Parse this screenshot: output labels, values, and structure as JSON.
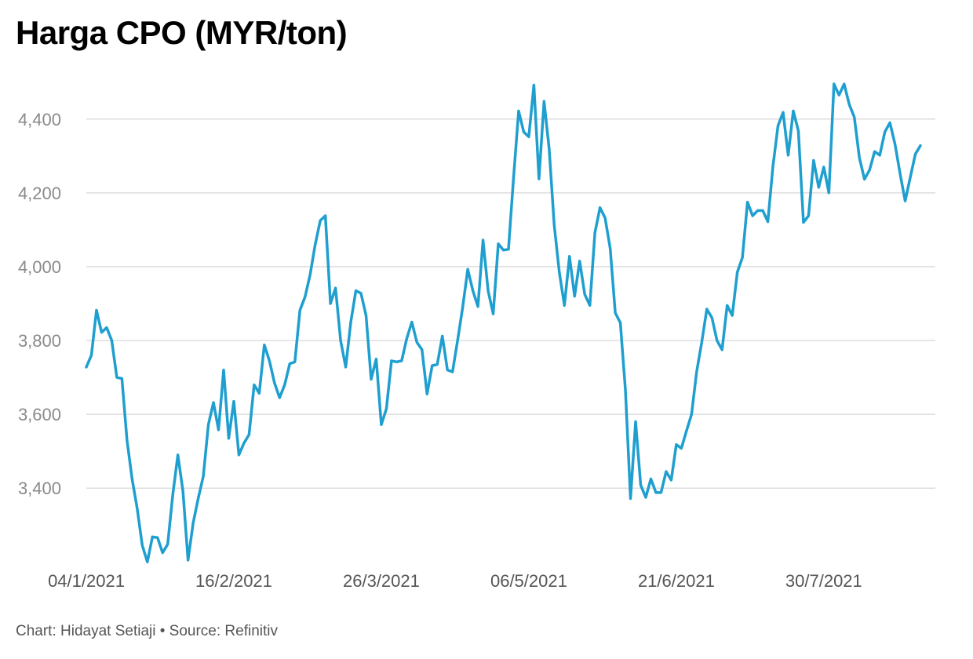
{
  "chart_data": {
    "type": "line",
    "title": "Harga CPO (MYR/ton)",
    "xlabel": "",
    "ylabel": "",
    "ylim": [
      3190,
      4510
    ],
    "yticks": [
      3400,
      3600,
      3800,
      4000,
      4200,
      4400
    ],
    "ytick_labels": [
      "3,400",
      "3,600",
      "3,800",
      "4,000",
      "4,200",
      "4,400"
    ],
    "xticks": [
      {
        "index": 0,
        "label": "04/1/2021"
      },
      {
        "index": 29,
        "label": "16/2/2021"
      },
      {
        "index": 58,
        "label": "26/3/2021"
      },
      {
        "index": 87,
        "label": "06/5/2021"
      },
      {
        "index": 116,
        "label": "21/6/2021"
      },
      {
        "index": 145,
        "label": "30/7/2021"
      }
    ],
    "grid": true,
    "color": "#1f9fcf",
    "series": [
      {
        "name": "CPO",
        "values": [
          3728,
          3760,
          3882,
          3822,
          3835,
          3800,
          3700,
          3697,
          3530,
          3425,
          3345,
          3245,
          3200,
          3268,
          3266,
          3225,
          3248,
          3382,
          3490,
          3392,
          3205,
          3305,
          3372,
          3432,
          3572,
          3632,
          3558,
          3720,
          3535,
          3635,
          3490,
          3522,
          3545,
          3680,
          3657,
          3788,
          3745,
          3685,
          3645,
          3680,
          3737,
          3742,
          3882,
          3918,
          3978,
          4060,
          4125,
          4138,
          3900,
          3942,
          3800,
          3728,
          3850,
          3935,
          3928,
          3868,
          3695,
          3750,
          3572,
          3615,
          3745,
          3742,
          3745,
          3805,
          3850,
          3795,
          3775,
          3655,
          3732,
          3735,
          3812,
          3720,
          3715,
          3800,
          3890,
          3993,
          3935,
          3892,
          4072,
          3935,
          3872,
          4062,
          4045,
          4047,
          4240,
          4422,
          4365,
          4352,
          4492,
          4238,
          4448,
          4320,
          4112,
          3985,
          3895,
          4028,
          3920,
          4015,
          3925,
          3895,
          4092,
          4160,
          4132,
          4050,
          3875,
          3848,
          3665,
          3372,
          3580,
          3408,
          3375,
          3425,
          3388,
          3388,
          3445,
          3422,
          3518,
          3508,
          3555,
          3600,
          3715,
          3795,
          3885,
          3862,
          3800,
          3775,
          3895,
          3868,
          3985,
          4025,
          4175,
          4138,
          4152,
          4152,
          4122,
          4272,
          4382,
          4418,
          4302,
          4422,
          4368,
          4120,
          4138,
          4288,
          4215,
          4270,
          4200,
          4495,
          4465,
          4495,
          4440,
          4405,
          4295,
          4237,
          4262,
          4312,
          4302,
          4365,
          4390,
          4332,
          4252,
          4178,
          4242,
          4305,
          4328
        ]
      }
    ]
  },
  "footer": {
    "credit": "Chart: Hidayat Setiaji • Source: Refinitiv"
  }
}
